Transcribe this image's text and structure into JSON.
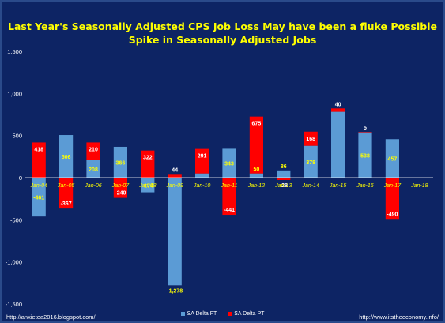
{
  "title_line1": "Last Year's Seasonally Adjusted CPS Job Loss May have been a fluke Possible",
  "title_line2": "Spike in Seasonally Adjusted Jobs",
  "footer_left": "http://anxietea2016.blogspot.com/",
  "footer_right": "http://www.itstheeconomy.info/",
  "colors": {
    "background": "#0d2464",
    "ft": "#5b9bd5",
    "pt": "#ff0000",
    "title": "#ffff00",
    "ft_label": "#ffff00",
    "pt_label": "#ffffff"
  },
  "chart_data": {
    "type": "bar",
    "title": "Last Year's Seasonally Adjusted CPS Job Loss May have been a fluke Possible Spike in Seasonally Adjusted Jobs",
    "categories": [
      "Jan-04",
      "Jan-05",
      "Jan-06",
      "Jan-07",
      "Jan-08",
      "Jan-09",
      "Jan-10",
      "Jan-11",
      "Jan-12",
      "Jan-13",
      "Jan-14",
      "Jan-15",
      "Jan-16",
      "Jan-17",
      "Jan-18"
    ],
    "series": [
      {
        "name": "SA Delta FT",
        "values": [
          -461,
          506,
          208,
          366,
          -174,
          -1278,
          50,
          343,
          50,
          86,
          378,
          782,
          538,
          457,
          null
        ],
        "labels": [
          "-461",
          "506",
          "208",
          "366",
          "-174",
          "-1,278",
          "",
          "343",
          "50",
          "86",
          "378",
          "",
          "538",
          "457",
          ""
        ]
      },
      {
        "name": "SA Delta PT",
        "values": [
          418,
          -367,
          210,
          -240,
          322,
          44,
          291,
          -441,
          675,
          -28,
          168,
          40,
          5,
          -490,
          null
        ],
        "labels": [
          "418",
          "-367",
          "210",
          "-240",
          "322",
          "44",
          "291",
          "-441",
          "675",
          "-28",
          "168",
          "40",
          "5",
          "-490",
          ""
        ]
      }
    ],
    "stacked": true,
    "ylim": [
      -1500,
      1500
    ],
    "yticks": [
      1500,
      1000,
      500,
      0,
      -500,
      -1000,
      -1500
    ],
    "ytick_labels": [
      "1,500",
      "1,000",
      "500",
      "0",
      "-500",
      "-1,000",
      "-1,500"
    ],
    "grid": false,
    "legend": "bottom"
  }
}
